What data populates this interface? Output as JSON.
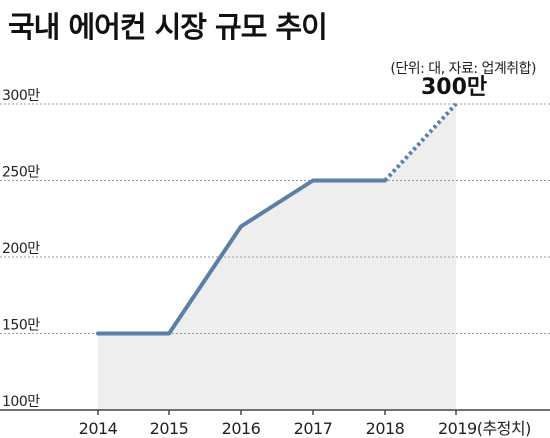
{
  "header": {
    "title": "국내 에어컨 시장 규모 추이",
    "subtitle": "(단위: 대, 자료: 업계취합)"
  },
  "chart_data": {
    "type": "line",
    "title": "국내 에어컨 시장 규모 추이",
    "subtitle": "(단위: 대, 자료: 업계취합)",
    "categories": [
      "2014",
      "2015",
      "2016",
      "2017",
      "2018",
      "2019(추정치)"
    ],
    "series": [
      {
        "values": [
          150,
          150,
          220,
          250,
          250,
          300
        ],
        "projected_from_index": 4
      }
    ],
    "y_ticks": [
      {
        "value": 100,
        "label": "100만"
      },
      {
        "value": 150,
        "label": "150만"
      },
      {
        "value": 200,
        "label": "200만"
      },
      {
        "value": 250,
        "label": "250만"
      },
      {
        "value": 300,
        "label": "300만"
      }
    ],
    "ylim": [
      100,
      300
    ],
    "grid": "horizontal-dotted",
    "annotations": [
      {
        "index": 5,
        "text": "300만"
      }
    ],
    "colors": {
      "line": "#5a7fa8",
      "area": "#eeeeee",
      "grid": "#999999",
      "axis": "#444444"
    }
  }
}
